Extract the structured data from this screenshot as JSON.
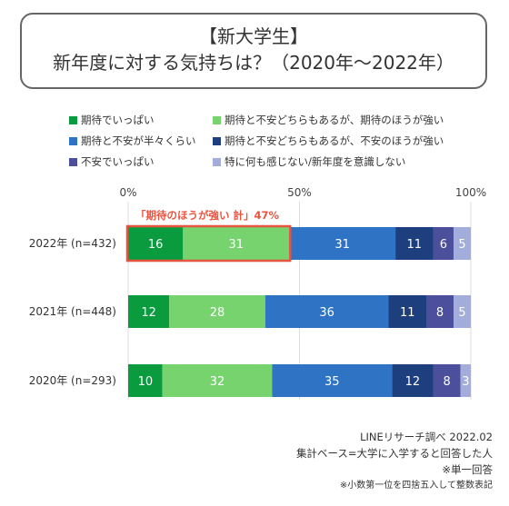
{
  "title": {
    "line1": "【新大学生】",
    "line2": "新年度に対する気持ちは？（2020年～2022年）"
  },
  "colors": {
    "s1": "#0a9b3f",
    "s2": "#76d36e",
    "s3": "#2f74c4",
    "s4": "#1d3f7e",
    "s5": "#4b4f9c",
    "s6": "#a2addb",
    "highlight": "#e8543f"
  },
  "highlight_label": "「期待のほうが強い 計」47%",
  "footer": {
    "line1": "LINEリサーチ調べ 2022.02",
    "line2": "集計ベース=大学に入学すると回答した人",
    "line3": "※単一回答",
    "line4": "※小数第一位を四捨五入して整数表記"
  },
  "chart_data": {
    "type": "bar",
    "orientation": "horizontal",
    "stacked": true,
    "xlim": [
      0,
      100
    ],
    "x_ticks": [
      "0%",
      "50%",
      "100%"
    ],
    "categories": [
      "2022年 (n=432)",
      "2021年 (n=448)",
      "2020年 (n=293)"
    ],
    "series": [
      {
        "name": "期待でいっぱい",
        "values": [
          16,
          12,
          10
        ]
      },
      {
        "name": "期待と不安どちらもあるが、期待のほうが強い",
        "values": [
          31,
          28,
          32
        ]
      },
      {
        "name": "期待と不安が半々くらい",
        "values": [
          31,
          36,
          35
        ]
      },
      {
        "name": "期待と不安どちらもあるが、不安のほうが強い",
        "values": [
          11,
          11,
          12
        ]
      },
      {
        "name": "不安でいっぱい",
        "values": [
          6,
          8,
          8
        ]
      },
      {
        "name": "特に何も感じない/新年度を意識しない",
        "values": [
          5,
          5,
          3
        ]
      }
    ],
    "legend_position": "top",
    "grid": true
  }
}
